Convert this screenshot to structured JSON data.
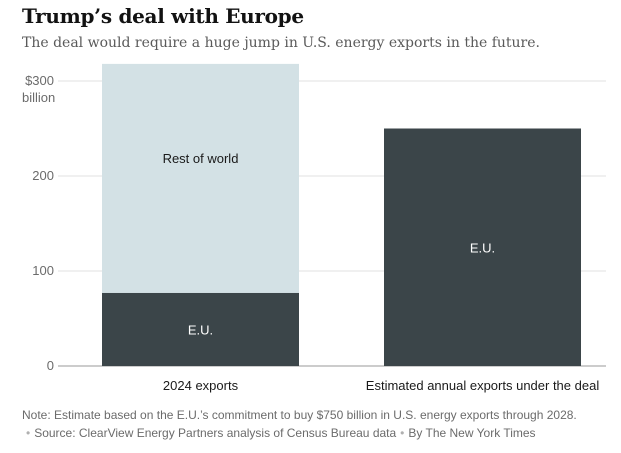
{
  "title": "Trump’s deal with Europe",
  "subtitle": "The deal would require a huge jump in U.S. energy exports in the future.",
  "chart_data": {
    "type": "bar",
    "stacked": true,
    "categories": [
      "2024 exports",
      "Estimated annual exports under the deal"
    ],
    "series": [
      {
        "name": "E.U.",
        "values": [
          77,
          250
        ],
        "color": "#3b4549"
      },
      {
        "name": "Rest of world",
        "values": [
          241,
          0
        ],
        "color": "#d3e1e5"
      }
    ],
    "ylim": [
      0,
      300
    ],
    "yticks": [
      0,
      100,
      200,
      300
    ],
    "ytick_labels": [
      "0",
      "100",
      "200",
      "$300"
    ],
    "y_unit": "billion",
    "grid": true,
    "legend": "none"
  },
  "footer": {
    "note": "Note: Estimate based on the E.U.’s commitment to buy $750 billion in U.S. energy exports through 2028.",
    "source": "Source: ClearView Energy Partners analysis of Census Bureau data",
    "credit": "By The New York Times",
    "separator": "•"
  }
}
